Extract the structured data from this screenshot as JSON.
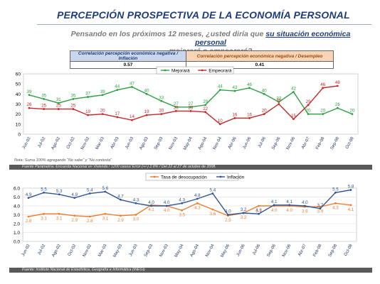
{
  "header": {
    "title": "PERCEPCIÓN PROSPECTIVA DE LA ECONOMÍA PERSONAL",
    "subtitle_lead": "Pensando en los próximos 12 meses, ¿usted diría que ",
    "subtitle_underlined": "su situación económica personal",
    "subtitle_line2": "mejorará o empeorará?"
  },
  "correlation": {
    "label_inflation": "Correlación percepción económica negativa / Inflación",
    "label_unemployment": "Correlación percepción económica negativa / Desempleo",
    "value_inflation": "0.57",
    "value_unemployment": "0.41"
  },
  "note": "Nota: Suma 100% agregando “No sabe” y “No contesta”",
  "source_top": "Fuente Parametría: Encuesta Nacional en Vivienda / 1200 casos/ Error (+/-) 2.8% / Del 22 al 27 de octubre de 2008.",
  "source_bottom": "Fuente: Instituto Nacional de Estadística, Geografía e Informática (INEGI)",
  "colors": {
    "green": "#2ea043",
    "red": "#c62828",
    "blue": "#2f5597",
    "orange": "#ed7d31",
    "title": "#1f3c7a"
  },
  "chart_data": [
    {
      "type": "line",
      "categories": [
        "Jun-02",
        "Jul-02",
        "Ago-02",
        "Oct-02",
        "Nov-02",
        "Mar-03",
        "Abr-03",
        "Jun-03",
        "Ago-03",
        "Sep-03",
        "Nov-03",
        "May-04",
        "Ago-04",
        "Nov-04",
        "Abr-06",
        "Jun-06",
        "Jul-06",
        "Sep-06",
        "Nov-06",
        "Abr-07",
        "Feb-08",
        "Sep-08",
        "Oct-08"
      ],
      "series": [
        {
          "name": "Mejorará",
          "color": "#2ea043",
          "values": [
            39,
            35,
            31,
            35,
            37,
            39,
            44,
            47,
            40,
            33,
            27,
            27,
            29,
            44,
            43,
            46,
            40,
            32,
            42,
            20,
            20,
            26,
            20
          ]
        },
        {
          "name": "Empeorará",
          "color": "#c62828",
          "values": [
            26,
            25,
            25,
            25,
            19,
            20,
            17,
            14,
            19,
            20,
            23,
            23,
            22,
            10,
            16,
            16,
            20,
            30,
            15,
            29,
            46,
            48,
            null
          ]
        }
      ],
      "ylim": [
        0,
        60
      ],
      "yticks": [
        0,
        10,
        20,
        30,
        40,
        50,
        60
      ],
      "grid": false,
      "legend": "top-center"
    },
    {
      "type": "line",
      "categories": [
        "Jun-02",
        "Jul-02",
        "Ago-02",
        "Oct-02",
        "Nov-02",
        "Mar-03",
        "May-03",
        "Jun-03",
        "Sep-03",
        "Nov-03",
        "May-04",
        "Ago-04",
        "Nov-04",
        "May-06",
        "Jun-06",
        "Jul-06",
        "Sep-06",
        "Nov-06",
        "Abr-07",
        "Feb-08",
        "Sep-08",
        "Oct-08"
      ],
      "series": [
        {
          "name": "Tasa de desocupación",
          "color": "#ed7d31",
          "values": [
            2.8,
            3.1,
            3.1,
            2.9,
            2.8,
            3.1,
            2.9,
            3.0,
            4.1,
            4.0,
            3.5,
            4.3,
            3.6,
            2.9,
            3.2,
            4.0,
            4.0,
            4.0,
            3.9,
            3.9,
            4.3,
            4.1
          ]
        },
        {
          "name": "Inflación",
          "color": "#2f5597",
          "values": [
            4.9,
            5.5,
            5.3,
            4.9,
            5.4,
            5.6,
            4.7,
            4.3,
            4.0,
            4.0,
            4.3,
            4.8,
            5.4,
            3.0,
            3.2,
            3.1,
            4.1,
            4.1,
            4.0,
            3.7,
            5.5,
            5.8
          ]
        }
      ],
      "ylim": [
        0.0,
        6.0
      ],
      "yticks": [
        "0.0",
        "1.0",
        "2.0",
        "3.0",
        "4.0",
        "5.0",
        "6.0"
      ],
      "grid": true,
      "legend": "top-center"
    }
  ]
}
